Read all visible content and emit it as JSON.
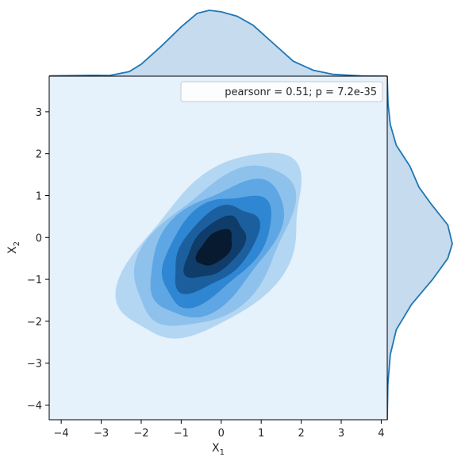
{
  "chart_data": {
    "type": "kde_joint",
    "xlabel": "X",
    "xlabel_sub": "1",
    "ylabel": "X",
    "ylabel_sub": "2",
    "xlim": [
      -4.3,
      4.15
    ],
    "ylim": [
      -4.35,
      3.85
    ],
    "xticks": [
      -4,
      -3,
      -2,
      -1,
      0,
      1,
      2,
      3,
      4
    ],
    "yticks": [
      -4,
      -3,
      -2,
      -1,
      0,
      1,
      2,
      3
    ],
    "xtick_labels": [
      "−4",
      "−3",
      "−2",
      "−1",
      "0",
      "1",
      "2",
      "3",
      "4"
    ],
    "ytick_labels": [
      "−4",
      "−3",
      "−2",
      "−1",
      "0",
      "1",
      "2",
      "3"
    ],
    "annotation": "pearsonr = 0.51; p = 7.2e-35",
    "legend_position": "top-right",
    "bivariate_kde": {
      "mean": [
        -0.15,
        -0.25
      ],
      "sd": [
        0.95,
        0.92
      ],
      "correlation": 0.51,
      "contour_levels": 7
    },
    "marginal_x_density": [
      {
        "x": -4.3,
        "density": 0.002
      },
      {
        "x": -3.2,
        "density": 0.006
      },
      {
        "x": -2.8,
        "density": 0.004
      },
      {
        "x": -2.3,
        "density": 0.03
      },
      {
        "x": -2.0,
        "density": 0.08
      },
      {
        "x": -1.5,
        "density": 0.2
      },
      {
        "x": -1.0,
        "density": 0.33
      },
      {
        "x": -0.6,
        "density": 0.42
      },
      {
        "x": -0.3,
        "density": 0.44
      },
      {
        "x": 0.0,
        "density": 0.43
      },
      {
        "x": 0.4,
        "density": 0.4
      },
      {
        "x": 0.8,
        "density": 0.34
      },
      {
        "x": 1.3,
        "density": 0.22
      },
      {
        "x": 1.8,
        "density": 0.1
      },
      {
        "x": 2.3,
        "density": 0.04
      },
      {
        "x": 2.8,
        "density": 0.012
      },
      {
        "x": 3.5,
        "density": 0.002
      },
      {
        "x": 4.15,
        "density": 0.0
      }
    ],
    "marginal_y_density": [
      {
        "y": -4.35,
        "density": 0.0
      },
      {
        "y": -3.5,
        "density": 0.004
      },
      {
        "y": -2.8,
        "density": 0.02
      },
      {
        "y": -2.2,
        "density": 0.06
      },
      {
        "y": -1.6,
        "density": 0.16
      },
      {
        "y": -1.0,
        "density": 0.3
      },
      {
        "y": -0.5,
        "density": 0.4
      },
      {
        "y": -0.15,
        "density": 0.43
      },
      {
        "y": 0.3,
        "density": 0.4
      },
      {
        "y": 0.8,
        "density": 0.29
      },
      {
        "y": 1.2,
        "density": 0.21
      },
      {
        "y": 1.7,
        "density": 0.15
      },
      {
        "y": 2.2,
        "density": 0.06
      },
      {
        "y": 2.7,
        "density": 0.02
      },
      {
        "y": 3.2,
        "density": 0.005
      },
      {
        "y": 3.85,
        "density": 0.0
      }
    ],
    "colors": {
      "background": "#e5f1fb",
      "line": "#1f77b4",
      "marginal_fill": "#c6dbee",
      "levels": [
        "#b3d6f2",
        "#8ec2ec",
        "#5ea7e4",
        "#2f86d2",
        "#1c5f9e",
        "#0f3c69",
        "#071a2f"
      ]
    }
  }
}
